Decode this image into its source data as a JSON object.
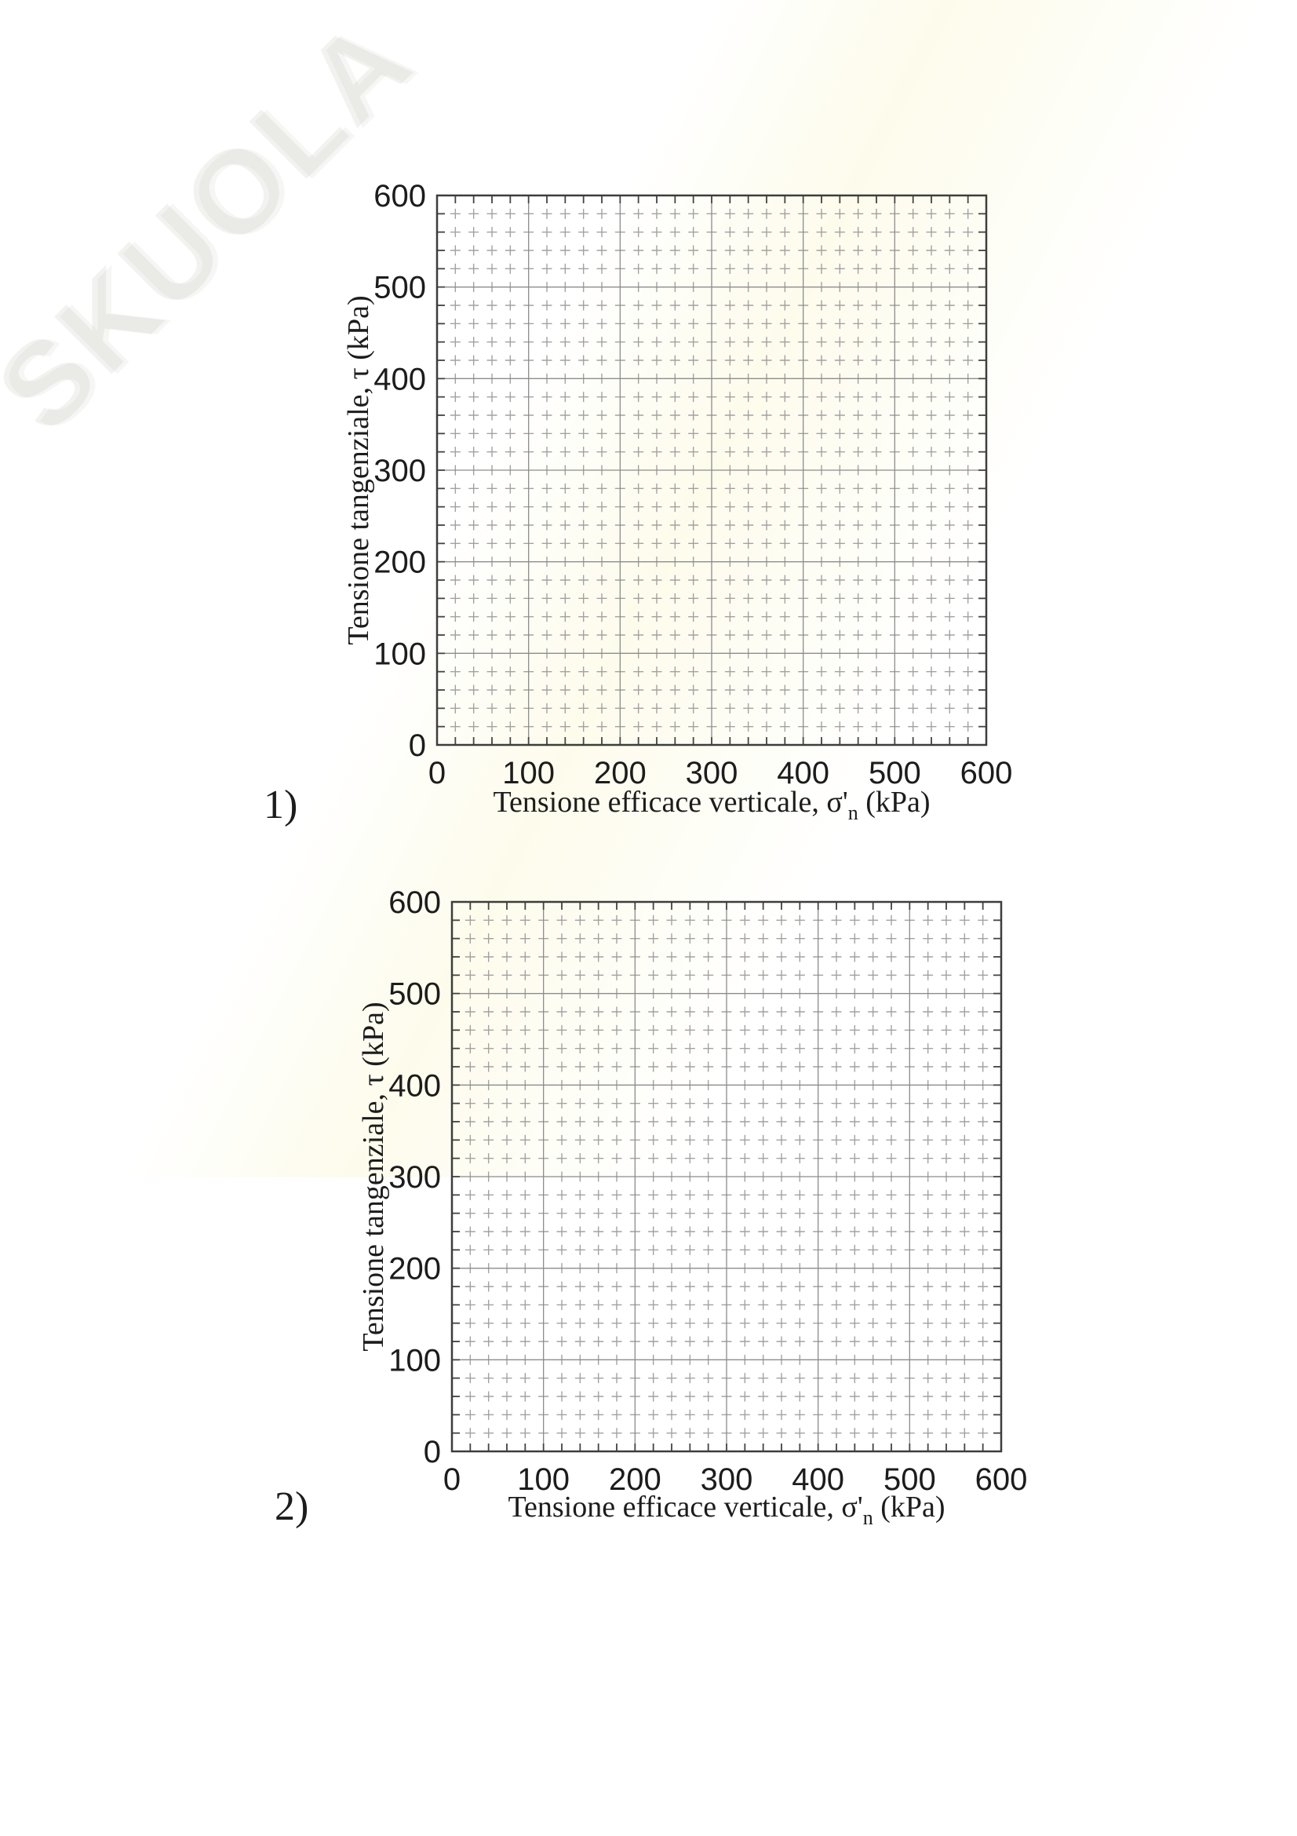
{
  "page": {
    "watermark_text": "SKUOLA"
  },
  "charts": [
    {
      "panel_label": "1)",
      "y_title": "Tensione tangenziale, τ (kPa)",
      "x_title_pre": "Tensione efficace verticale, σ'",
      "x_title_sub": "n",
      "x_title_post": " (kPa)",
      "x_tick_labels": [
        "0",
        "100",
        "200",
        "300",
        "400",
        "500",
        "600"
      ],
      "y_tick_labels": [
        "600",
        "500",
        "400",
        "300",
        "200",
        "100",
        "0"
      ]
    },
    {
      "panel_label": "2)",
      "y_title": "Tensione tangenziale, τ (kPa)",
      "x_title_pre": "Tensione efficace verticale, σ'",
      "x_title_sub": "n",
      "x_title_post": " (kPa)",
      "x_tick_labels": [
        "0",
        "100",
        "200",
        "300",
        "400",
        "500",
        "600"
      ],
      "y_tick_labels": [
        "600",
        "500",
        "400",
        "300",
        "200",
        "100",
        "0"
      ]
    }
  ],
  "chart_data": [
    {
      "type": "scatter",
      "title": "",
      "panel_label": "1)",
      "xlabel": "Tensione efficace verticale, σ'n (kPa)",
      "ylabel": "Tensione tangenziale, τ (kPa)",
      "xlim": [
        0,
        600
      ],
      "ylim": [
        0,
        600
      ],
      "x_ticks": [
        0,
        100,
        200,
        300,
        400,
        500,
        600
      ],
      "y_ticks": [
        0,
        100,
        200,
        300,
        400,
        500,
        600
      ],
      "x_major_step": 100,
      "x_minor_step": 20,
      "y_major_step": 100,
      "y_minor_step": 20,
      "grid": "major-solid-gray, minor-dashed-gray, inward edge ticks every 20",
      "legend": "none",
      "series": []
    },
    {
      "type": "scatter",
      "title": "",
      "panel_label": "2)",
      "xlabel": "Tensione efficace verticale, σ'n (kPa)",
      "ylabel": "Tensione tangenziale, τ (kPa)",
      "xlim": [
        0,
        600
      ],
      "ylim": [
        0,
        600
      ],
      "x_ticks": [
        0,
        100,
        200,
        300,
        400,
        500,
        600
      ],
      "y_ticks": [
        0,
        100,
        200,
        300,
        400,
        500,
        600
      ],
      "x_major_step": 100,
      "x_minor_step": 20,
      "y_major_step": 100,
      "y_minor_step": 20,
      "grid": "major-solid-gray, minor-dashed-gray, inward edge ticks every 20",
      "legend": "none",
      "series": []
    }
  ]
}
